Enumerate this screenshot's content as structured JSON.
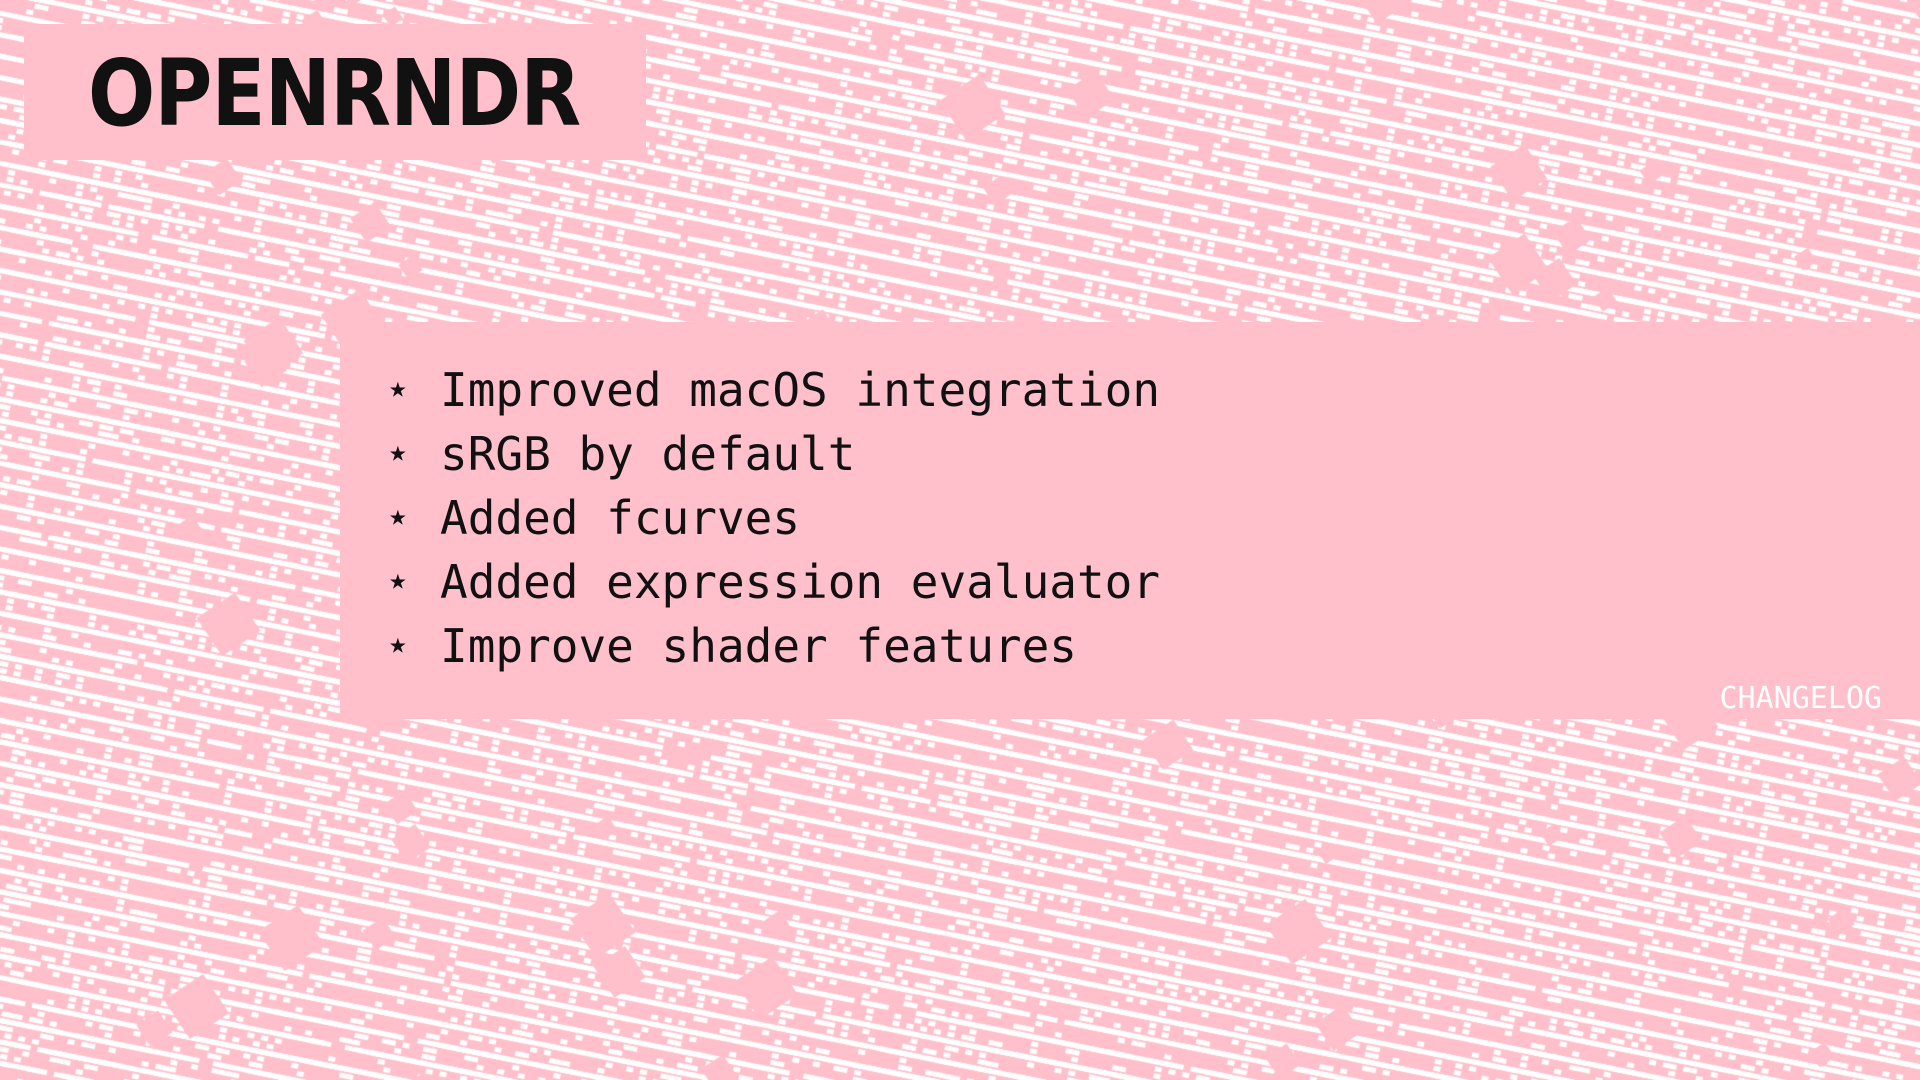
{
  "slide": {
    "title": "OPENRNDR",
    "section_label": "CHANGELOG",
    "bullet_icon": "star-icon",
    "bullet_glyph": "⋆",
    "items": [
      {
        "text": "Improved macOS integration"
      },
      {
        "text": "sRGB by default"
      },
      {
        "text": "Added fcurves"
      },
      {
        "text": "Added expression evaluator"
      },
      {
        "text": "Improve shader features"
      }
    ]
  },
  "colors": {
    "pink": "#ffc0cb",
    "white": "#ffffff",
    "text": "#111111"
  }
}
